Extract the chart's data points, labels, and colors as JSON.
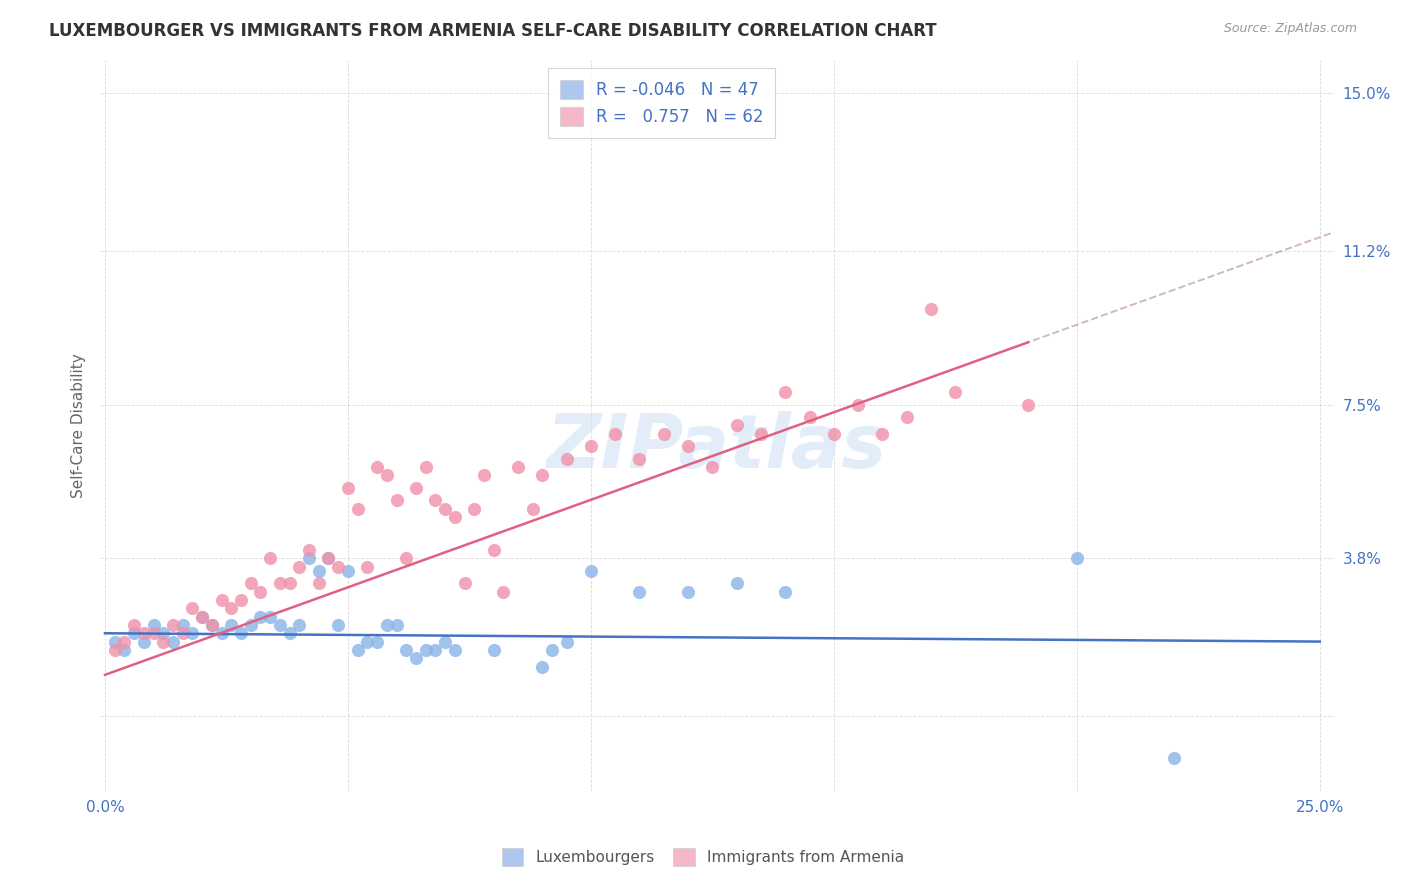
{
  "title": "LUXEMBOURGER VS IMMIGRANTS FROM ARMENIA SELF-CARE DISABILITY CORRELATION CHART",
  "source": "Source: ZipAtlas.com",
  "ylabel": "Self-Care Disability",
  "x_min": 0.0,
  "x_max": 0.25,
  "y_min": -0.018,
  "y_max": 0.158,
  "y_ticks": [
    0.0,
    0.038,
    0.075,
    0.112,
    0.15
  ],
  "y_tick_labels": [
    "",
    "3.8%",
    "7.5%",
    "11.2%",
    "15.0%"
  ],
  "x_ticks": [
    0.0,
    0.05,
    0.1,
    0.15,
    0.2,
    0.25
  ],
  "x_tick_labels": [
    "0.0%",
    "",
    "",
    "",
    "",
    "25.0%"
  ],
  "blue_color": "#88b4e8",
  "pink_color": "#f090a8",
  "blue_line_color": "#4472c4",
  "pink_line_color": "#e06080",
  "watermark": "ZIPatlas",
  "blue_scatter": [
    [
      0.002,
      0.018
    ],
    [
      0.004,
      0.016
    ],
    [
      0.006,
      0.02
    ],
    [
      0.008,
      0.018
    ],
    [
      0.01,
      0.022
    ],
    [
      0.012,
      0.02
    ],
    [
      0.014,
      0.018
    ],
    [
      0.016,
      0.022
    ],
    [
      0.018,
      0.02
    ],
    [
      0.02,
      0.024
    ],
    [
      0.022,
      0.022
    ],
    [
      0.024,
      0.02
    ],
    [
      0.026,
      0.022
    ],
    [
      0.028,
      0.02
    ],
    [
      0.03,
      0.022
    ],
    [
      0.032,
      0.024
    ],
    [
      0.034,
      0.024
    ],
    [
      0.036,
      0.022
    ],
    [
      0.038,
      0.02
    ],
    [
      0.04,
      0.022
    ],
    [
      0.042,
      0.038
    ],
    [
      0.044,
      0.035
    ],
    [
      0.046,
      0.038
    ],
    [
      0.048,
      0.022
    ],
    [
      0.05,
      0.035
    ],
    [
      0.052,
      0.016
    ],
    [
      0.054,
      0.018
    ],
    [
      0.056,
      0.018
    ],
    [
      0.058,
      0.022
    ],
    [
      0.06,
      0.022
    ],
    [
      0.062,
      0.016
    ],
    [
      0.064,
      0.014
    ],
    [
      0.066,
      0.016
    ],
    [
      0.068,
      0.016
    ],
    [
      0.07,
      0.018
    ],
    [
      0.072,
      0.016
    ],
    [
      0.08,
      0.016
    ],
    [
      0.09,
      0.012
    ],
    [
      0.092,
      0.016
    ],
    [
      0.095,
      0.018
    ],
    [
      0.1,
      0.035
    ],
    [
      0.11,
      0.03
    ],
    [
      0.12,
      0.03
    ],
    [
      0.13,
      0.032
    ],
    [
      0.14,
      0.03
    ],
    [
      0.2,
      0.038
    ],
    [
      0.22,
      -0.01
    ]
  ],
  "pink_scatter": [
    [
      0.002,
      0.016
    ],
    [
      0.004,
      0.018
    ],
    [
      0.006,
      0.022
    ],
    [
      0.008,
      0.02
    ],
    [
      0.01,
      0.02
    ],
    [
      0.012,
      0.018
    ],
    [
      0.014,
      0.022
    ],
    [
      0.016,
      0.02
    ],
    [
      0.018,
      0.026
    ],
    [
      0.02,
      0.024
    ],
    [
      0.022,
      0.022
    ],
    [
      0.024,
      0.028
    ],
    [
      0.026,
      0.026
    ],
    [
      0.028,
      0.028
    ],
    [
      0.03,
      0.032
    ],
    [
      0.032,
      0.03
    ],
    [
      0.034,
      0.038
    ],
    [
      0.036,
      0.032
    ],
    [
      0.038,
      0.032
    ],
    [
      0.04,
      0.036
    ],
    [
      0.042,
      0.04
    ],
    [
      0.044,
      0.032
    ],
    [
      0.046,
      0.038
    ],
    [
      0.048,
      0.036
    ],
    [
      0.05,
      0.055
    ],
    [
      0.052,
      0.05
    ],
    [
      0.054,
      0.036
    ],
    [
      0.056,
      0.06
    ],
    [
      0.058,
      0.058
    ],
    [
      0.06,
      0.052
    ],
    [
      0.062,
      0.038
    ],
    [
      0.064,
      0.055
    ],
    [
      0.066,
      0.06
    ],
    [
      0.068,
      0.052
    ],
    [
      0.07,
      0.05
    ],
    [
      0.072,
      0.048
    ],
    [
      0.074,
      0.032
    ],
    [
      0.076,
      0.05
    ],
    [
      0.078,
      0.058
    ],
    [
      0.08,
      0.04
    ],
    [
      0.082,
      0.03
    ],
    [
      0.085,
      0.06
    ],
    [
      0.088,
      0.05
    ],
    [
      0.09,
      0.058
    ],
    [
      0.095,
      0.062
    ],
    [
      0.1,
      0.065
    ],
    [
      0.105,
      0.068
    ],
    [
      0.11,
      0.062
    ],
    [
      0.115,
      0.068
    ],
    [
      0.12,
      0.065
    ],
    [
      0.125,
      0.06
    ],
    [
      0.13,
      0.07
    ],
    [
      0.135,
      0.068
    ],
    [
      0.14,
      0.078
    ],
    [
      0.145,
      0.072
    ],
    [
      0.15,
      0.068
    ],
    [
      0.155,
      0.075
    ],
    [
      0.16,
      0.068
    ],
    [
      0.165,
      0.072
    ],
    [
      0.17,
      0.098
    ],
    [
      0.175,
      0.078
    ],
    [
      0.19,
      0.075
    ]
  ]
}
